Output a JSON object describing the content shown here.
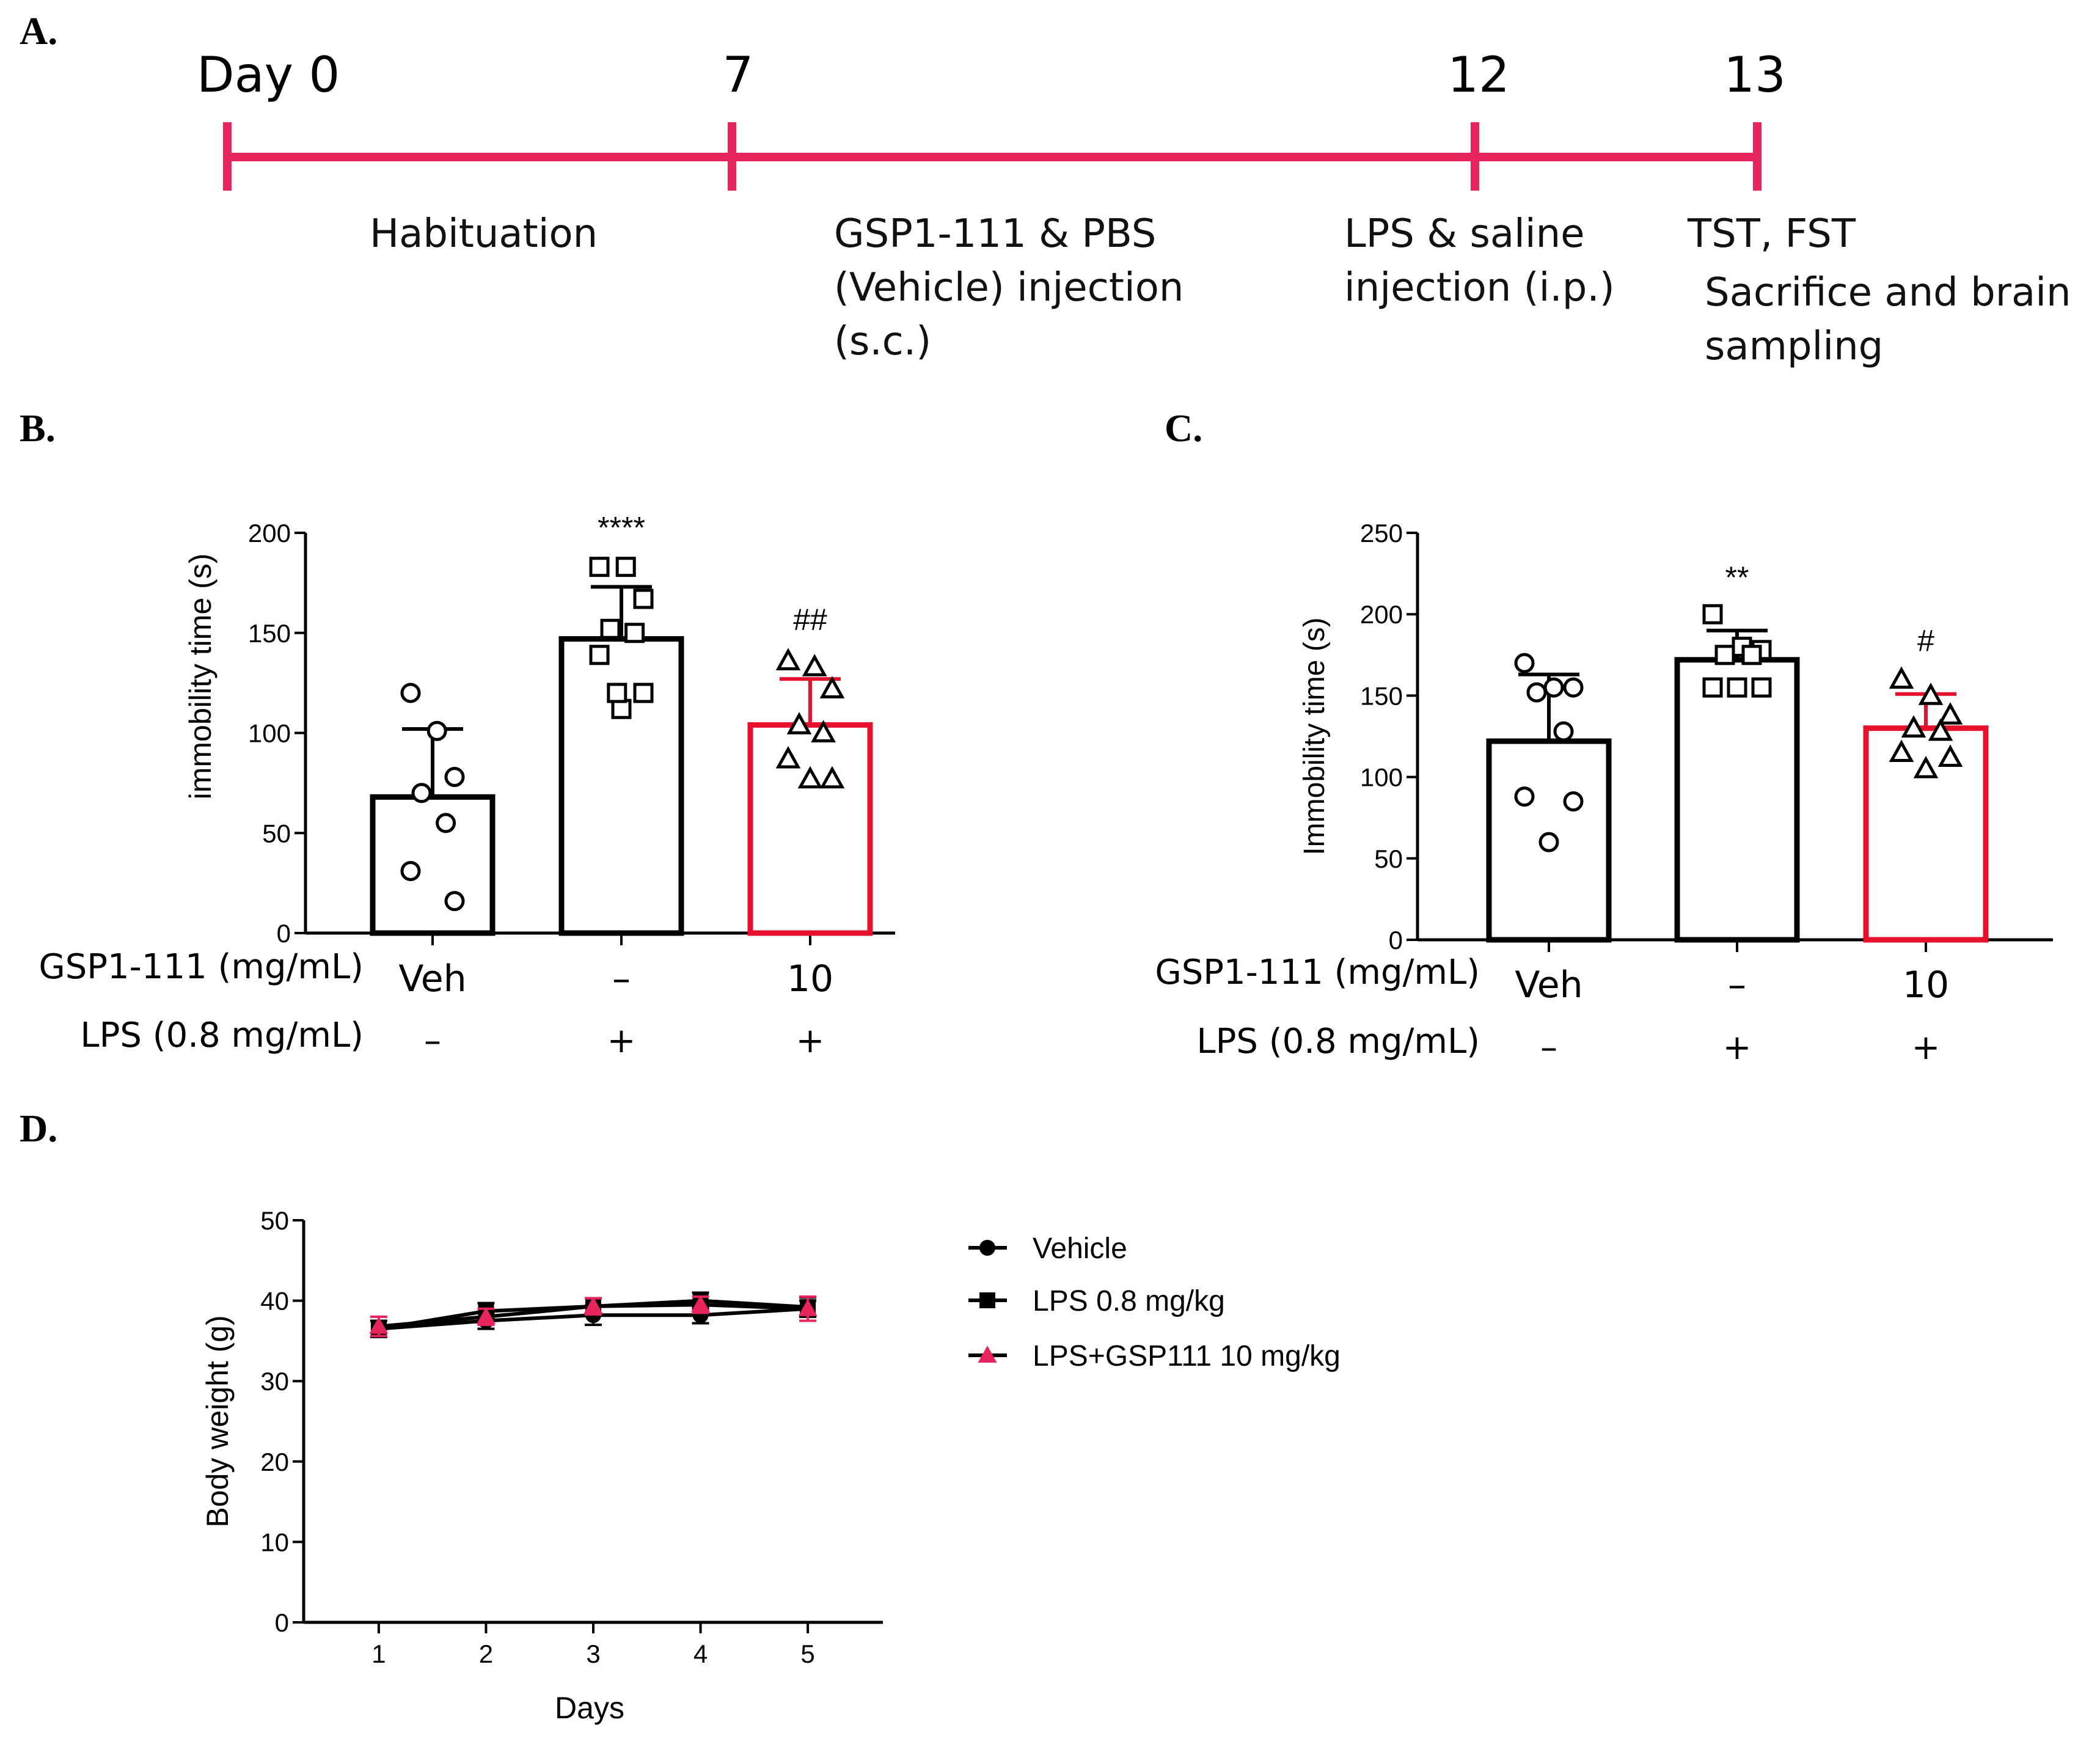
{
  "colors": {
    "accent": "#e8245c",
    "red": "#e8112d",
    "black": "#000000"
  },
  "panel_a": {
    "label": "A.",
    "days": [
      "Day 0",
      "7",
      "12",
      "13"
    ],
    "phases": [
      [
        "Habituation"
      ],
      [
        "GSP1-111  & PBS",
        "(Vehicle)  injection",
        "(s.c.)"
      ],
      [
        "LPS  & saline",
        "injection  (i.p.)"
      ],
      [
        "TST,  FST",
        "Sacrifice  and  brain",
        "sampling"
      ]
    ]
  },
  "chart_data": [
    {
      "panel": "B.",
      "type": "bar",
      "ylabel": "immobility time (s)",
      "ylim": [
        0,
        200
      ],
      "yticks": [
        0,
        50,
        100,
        150,
        200
      ],
      "categories": [
        "Veh",
        "–",
        "10"
      ],
      "row_labels": [
        "GSP1-111 (mg/mL)",
        "LPS (0.8 mg/mL)"
      ],
      "lps_row": [
        "–",
        "+",
        "+"
      ],
      "bars": [
        {
          "mean": 68,
          "sd": 34,
          "marker": "circle",
          "color": "#000000",
          "sig": "",
          "points": [
            120,
            101,
            78,
            70,
            55,
            31,
            16
          ]
        },
        {
          "mean": 147,
          "sd": 26,
          "marker": "square",
          "color": "#000000",
          "sig": "****",
          "points": [
            183,
            183,
            167,
            152,
            150,
            139,
            120,
            112,
            120
          ]
        },
        {
          "mean": 104,
          "sd": 23,
          "marker": "triangle",
          "color": "#e8112d",
          "sig": "##",
          "points": [
            136,
            133,
            122,
            104,
            100,
            87,
            77,
            77
          ]
        }
      ]
    },
    {
      "panel": "C.",
      "type": "bar",
      "ylabel": "Immobility time (s)",
      "ylim": [
        0,
        250
      ],
      "yticks": [
        0,
        50,
        100,
        150,
        200,
        250
      ],
      "categories": [
        "Veh",
        "–",
        "10"
      ],
      "row_labels": [
        "GSP1-111 (mg/mL)",
        "LPS (0.8 mg/mL)"
      ],
      "lps_row": [
        "–",
        "+",
        "+"
      ],
      "bars": [
        {
          "mean": 122,
          "sd": 41,
          "marker": "circle",
          "color": "#000000",
          "sig": "",
          "points": [
            170,
            155,
            155,
            152,
            128,
            88,
            85,
            60
          ]
        },
        {
          "mean": 172,
          "sd": 18,
          "marker": "square",
          "color": "#000000",
          "sig": "**",
          "points": [
            200,
            180,
            178,
            175,
            175,
            155,
            155,
            155
          ]
        },
        {
          "mean": 130,
          "sd": 21,
          "marker": "triangle",
          "color": "#e8112d",
          "sig": "#",
          "points": [
            160,
            150,
            138,
            130,
            128,
            115,
            112,
            105
          ]
        }
      ]
    },
    {
      "panel": "D.",
      "type": "line",
      "xlabel": "Days",
      "ylabel": "Body weight (g)",
      "xlim": [
        0.3,
        5.7
      ],
      "ylim": [
        0,
        50
      ],
      "xticks": [
        1,
        2,
        3,
        4,
        5
      ],
      "yticks": [
        0,
        10,
        20,
        30,
        40,
        50
      ],
      "series": [
        {
          "name": "Vehicle",
          "marker": "circle",
          "color": "#000000",
          "x": [
            1,
            2,
            3,
            4,
            5
          ],
          "values": [
            36.5,
            37.5,
            38.2,
            38.2,
            39.0
          ],
          "err": [
            1.0,
            1.0,
            1.2,
            1.0,
            1.0
          ]
        },
        {
          "name": "LPS 0.8 mg/kg",
          "marker": "square",
          "color": "#000000",
          "x": [
            1,
            2,
            3,
            4,
            5
          ],
          "values": [
            36.5,
            38.7,
            39.3,
            40.0,
            39.2
          ],
          "err": [
            1.0,
            1.0,
            1.0,
            1.0,
            1.2
          ]
        },
        {
          "name": "LPS+GSP111 10 mg/kg",
          "marker": "triangle",
          "color": "#e8245c",
          "x": [
            1,
            2,
            3,
            4,
            5
          ],
          "values": [
            36.8,
            38.0,
            39.3,
            39.5,
            39.0
          ],
          "err": [
            1.2,
            1.0,
            1.0,
            1.0,
            1.5
          ]
        }
      ]
    }
  ]
}
